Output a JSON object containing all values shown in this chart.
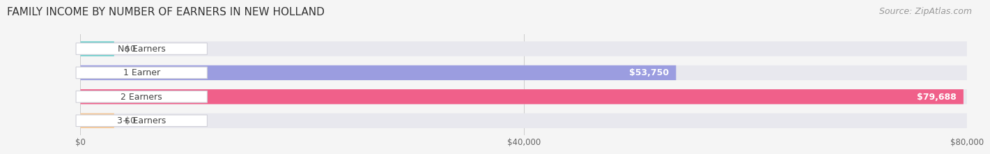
{
  "title": "FAMILY INCOME BY NUMBER OF EARNERS IN NEW HOLLAND",
  "source": "Source: ZipAtlas.com",
  "categories": [
    "No Earners",
    "1 Earner",
    "2 Earners",
    "3+ Earners"
  ],
  "values": [
    0,
    53750,
    79688,
    0
  ],
  "bar_colors": [
    "#6dcfcc",
    "#9b9de0",
    "#f0608a",
    "#f5c897"
  ],
  "bar_bg_color": "#e8e8ee",
  "max_value": 80000,
  "xticks": [
    0,
    40000,
    80000
  ],
  "xticklabels": [
    "$0",
    "$40,000",
    "$80,000"
  ],
  "value_labels": [
    "$0",
    "$53,750",
    "$79,688",
    "$0"
  ],
  "title_fontsize": 11,
  "source_fontsize": 9,
  "label_fontsize": 9,
  "value_fontsize": 9,
  "background_color": "#f5f5f5"
}
